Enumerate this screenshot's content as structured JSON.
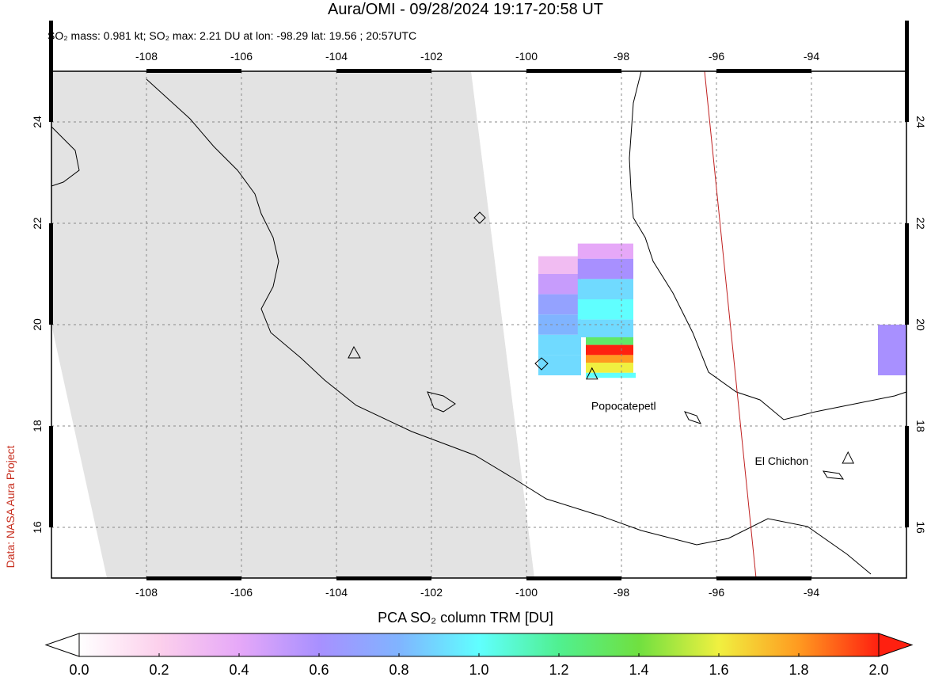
{
  "title": "Aura/OMI - 09/28/2024 19:17-20:58 UT",
  "subtitle": "SO₂ mass: 0.981 kt; SO₂ max: 2.21 DU at lon: -98.29 lat: 19.56 ; 20:57UTC",
  "credit": "Data: NASA Aura Project",
  "map": {
    "lon_range": [
      -110,
      -92
    ],
    "lat_range": [
      15,
      25
    ],
    "lon_ticks": [
      -108,
      -106,
      -104,
      -102,
      -100,
      -98,
      -96,
      -94
    ],
    "lat_ticks": [
      16,
      18,
      20,
      22,
      24
    ],
    "grid": true,
    "so2_cells": [
      {
        "lon": [
          -99.75,
          -98.85
        ],
        "lat": [
          21.0,
          21.35
        ],
        "value": 0.3
      },
      {
        "lon": [
          -99.75,
          -98.85
        ],
        "lat": [
          20.6,
          21.0
        ],
        "value": 0.5
      },
      {
        "lon": [
          -99.75,
          -98.85
        ],
        "lat": [
          20.2,
          20.6
        ],
        "value": 0.7
      },
      {
        "lon": [
          -99.75,
          -98.85
        ],
        "lat": [
          19.8,
          20.2
        ],
        "value": 0.8
      },
      {
        "lon": [
          -99.75,
          -98.85
        ],
        "lat": [
          19.4,
          19.8
        ],
        "value": 0.9
      },
      {
        "lon": [
          -99.75,
          -98.85
        ],
        "lat": [
          19.0,
          19.4
        ],
        "value": 0.9
      },
      {
        "lon": [
          -98.92,
          -97.75
        ],
        "lat": [
          21.3,
          21.6
        ],
        "value": 0.4
      },
      {
        "lon": [
          -98.92,
          -97.75
        ],
        "lat": [
          20.9,
          21.3
        ],
        "value": 0.6
      },
      {
        "lon": [
          -98.92,
          -97.75
        ],
        "lat": [
          20.5,
          20.9
        ],
        "value": 0.9
      },
      {
        "lon": [
          -98.92,
          -97.75
        ],
        "lat": [
          20.1,
          20.5
        ],
        "value": 1.0
      },
      {
        "lon": [
          -98.92,
          -97.75
        ],
        "lat": [
          19.75,
          20.1
        ],
        "value": 0.9
      },
      {
        "lon": [
          -98.75,
          -97.75
        ],
        "lat": [
          19.6,
          19.75
        ],
        "value": 1.3
      },
      {
        "lon": [
          -98.75,
          -97.75
        ],
        "lat": [
          19.4,
          19.6
        ],
        "value": 2.0
      },
      {
        "lon": [
          -98.75,
          -97.75
        ],
        "lat": [
          19.25,
          19.4
        ],
        "value": 1.8
      },
      {
        "lon": [
          -98.75,
          -97.75
        ],
        "lat": [
          19.05,
          19.25
        ],
        "value": 1.6
      },
      {
        "lon": [
          -98.75,
          -97.7
        ],
        "lat": [
          18.95,
          19.05
        ],
        "value": 1.0
      },
      {
        "lon": [
          -92.6,
          -92.0
        ],
        "lat": [
          19.0,
          20.0
        ],
        "value": 0.6
      }
    ],
    "volcanoes": [
      {
        "name": "Popocatepetl",
        "lon": -98.62,
        "lat": 19.02
      },
      {
        "name": "El Chichon",
        "lon": -93.23,
        "lat": 17.36
      }
    ]
  },
  "colorbar": {
    "title": "PCA SO₂ column TRM [DU]",
    "range": [
      0,
      2
    ],
    "ticks": [
      {
        "value": 0,
        "label": "0.0"
      },
      {
        "value": 0.2,
        "label": "0.2"
      },
      {
        "value": 0.4,
        "label": "0.4"
      },
      {
        "value": 0.6,
        "label": "0.6"
      },
      {
        "value": 0.8,
        "label": "0.8"
      },
      {
        "value": 1,
        "label": "1.0"
      },
      {
        "value": 1.2,
        "label": "1.2"
      },
      {
        "value": 1.4,
        "label": "1.4"
      },
      {
        "value": 1.6,
        "label": "1.6"
      },
      {
        "value": 1.8,
        "label": "1.8"
      },
      {
        "value": 2,
        "label": "2.0"
      }
    ],
    "colors": [
      "#ffffff",
      "#fcd0ec",
      "#e6a8f8",
      "#a890ff",
      "#80b4ff",
      "#60ffff",
      "#50f090",
      "#70e040",
      "#f0f040",
      "#ff9a20",
      "#ff2010"
    ]
  }
}
